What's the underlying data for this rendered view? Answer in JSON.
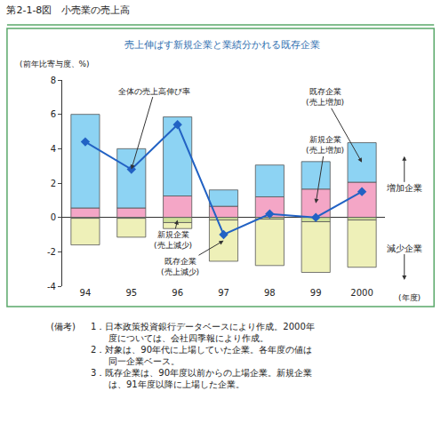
{
  "chart_data": {
    "type": "bar",
    "stacked": true,
    "grid": false,
    "title": "第2-1-8図　小売業の売上高",
    "subtitle": "売上伸ばす新規企業と業績分かれる既存企業",
    "y_label": "(前年比寄与度、%)",
    "x_label": "(年度)",
    "categories": [
      "94",
      "95",
      "96",
      "97",
      "98",
      "99",
      "2000"
    ],
    "ylim": [
      -4,
      8
    ],
    "yticks": [
      -4,
      -2,
      0,
      2,
      4,
      6,
      8
    ],
    "series": [
      {
        "name": "新規企業\n(売上増加)",
        "color": "#f4a6c6",
        "values": [
          0.55,
          0.55,
          1.25,
          0.65,
          1.2,
          1.65,
          2.05
        ]
      },
      {
        "name": "既存企業\n(売上増加)",
        "color": "#8dd3f3",
        "values": [
          5.45,
          3.45,
          4.6,
          0.95,
          1.85,
          1.6,
          2.3
        ]
      },
      {
        "name": "新規企業\n(売上減少)",
        "color": "#cfe09a",
        "values": [
          -0.05,
          -0.05,
          -0.3,
          -0.15,
          -0.1,
          -0.25,
          -0.15
        ]
      },
      {
        "name": "既存企業\n(売上減少)",
        "color": "#eef0b8",
        "values": [
          -1.55,
          -1.1,
          -0.35,
          -2.4,
          -2.7,
          -2.95,
          -2.75
        ]
      },
      {
        "name": "全体の売上高伸び率",
        "type": "line",
        "color": "#2262c4",
        "marker": "diamond",
        "values": [
          4.4,
          2.8,
          5.4,
          -1.0,
          0.2,
          0.0,
          1.5
        ]
      }
    ],
    "annotations": [
      "増加企業",
      "減少企業"
    ],
    "notes": {
      "label": "(備考)",
      "items": [
        [
          "1．日本政策投資銀行データベースにより作成。2000年",
          "度については、会社四季報により作成。"
        ],
        [
          "2．対象は、90年代に上場していた企業。各年度の値は",
          "同一企業ベース。"
        ],
        [
          "3．既存企業は、90年度以前からの上場企業。新規企業",
          "は、91年度以降に上場した企業。"
        ]
      ]
    }
  }
}
